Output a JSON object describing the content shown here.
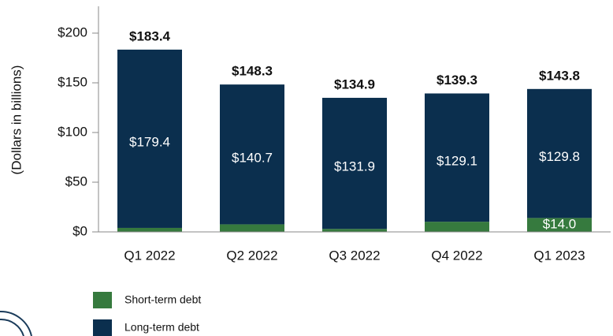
{
  "chart_data": {
    "type": "stacked_bar",
    "ylabel": "(Dollars in billions)",
    "categories": [
      "Q1 2022",
      "Q2 2022",
      "Q3 2022",
      "Q4 2022",
      "Q1 2023"
    ],
    "series": [
      {
        "name": "Short-term debt",
        "color": "#367a3e",
        "values": [
          4.0,
          7.6,
          3.0,
          10.2,
          14.0
        ],
        "value_labels": [
          null,
          null,
          null,
          null,
          "$14.0"
        ]
      },
      {
        "name": "Long-term debt",
        "color": "#0b2f4e",
        "values": [
          179.4,
          140.7,
          131.9,
          129.1,
          129.8
        ],
        "value_labels": [
          "$179.4",
          "$140.7",
          "$131.9",
          "$129.1",
          "$129.8"
        ]
      }
    ],
    "total_labels": [
      "$183.4",
      "$148.3",
      "$134.9",
      "$139.3",
      "$143.8"
    ],
    "ylim": [
      0,
      200
    ],
    "yticks": [
      {
        "value": 0,
        "label": "$0"
      },
      {
        "value": 50,
        "label": "$50"
      },
      {
        "value": 100,
        "label": "$100"
      },
      {
        "value": 150,
        "label": "$150"
      },
      {
        "value": 200,
        "label": "$200"
      }
    ]
  }
}
